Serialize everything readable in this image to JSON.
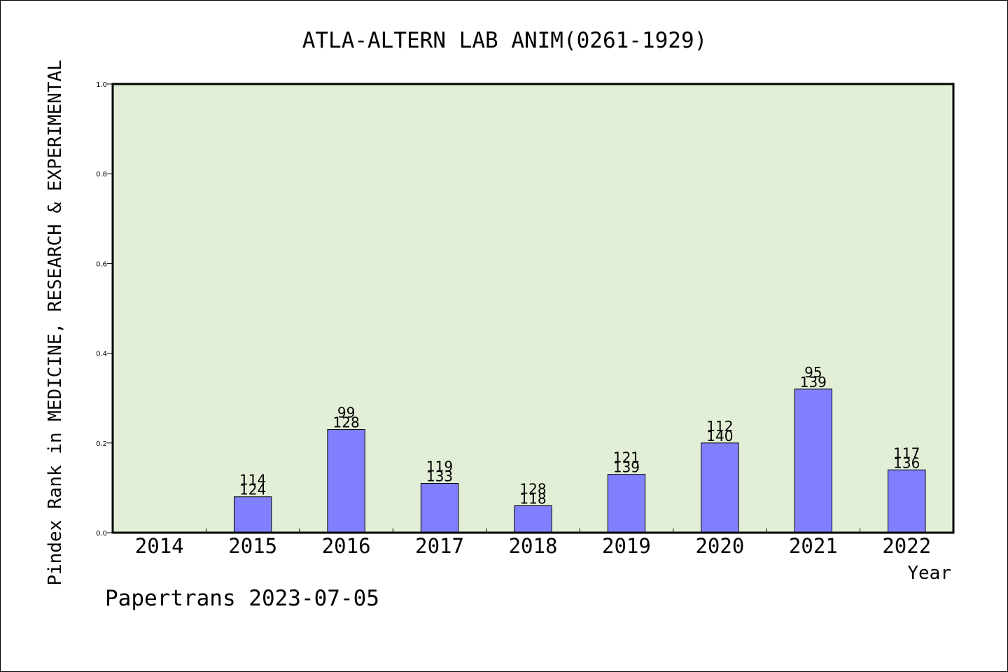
{
  "chart_data": {
    "type": "bar",
    "title": "ATLA-ALTERN LAB ANIM(0261-1929)",
    "xlabel": "Year",
    "ylabel": "Pindex Rank in MEDICINE, RESEARCH & EXPERIMENTAL",
    "ylim": [
      0,
      1.0
    ],
    "yticks": [
      "0.0",
      "0.2",
      "0.4",
      "0.6",
      "0.8",
      "1.0"
    ],
    "categories": [
      "2014",
      "2015",
      "2016",
      "2017",
      "2018",
      "2019",
      "2020",
      "2021",
      "2022"
    ],
    "values": [
      null,
      0.08,
      0.23,
      0.11,
      0.06,
      0.13,
      0.2,
      0.32,
      0.14
    ],
    "labels_top": [
      "",
      "114",
      "99",
      "119",
      "128",
      "121",
      "112",
      "95",
      "117"
    ],
    "labels_bottom": [
      "",
      "124",
      "128",
      "133",
      "118",
      "139",
      "140",
      "139",
      "136"
    ],
    "bar_color": "#8080ff",
    "plot_background": "#e2efd6",
    "grid": false
  },
  "footer": {
    "credit": "Papertrans 2023-07-05"
  }
}
